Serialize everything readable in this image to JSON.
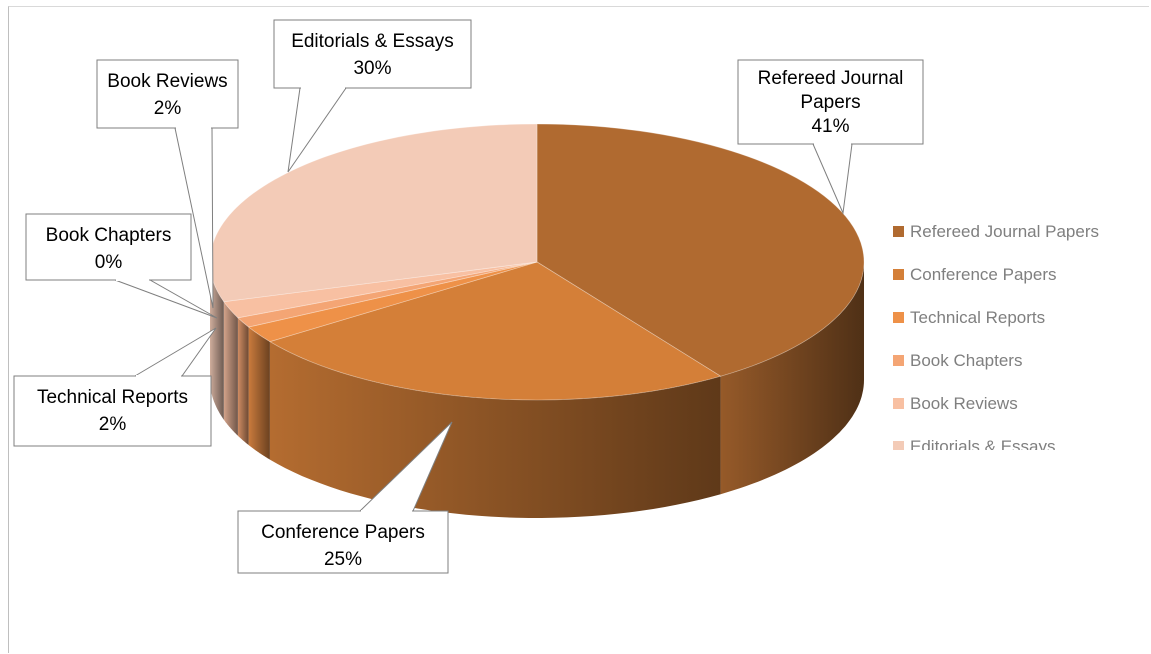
{
  "chart_data": {
    "type": "pie",
    "variant": "3d-pie",
    "legend_position": "right",
    "slices": [
      {
        "label": "Refereed Journal Papers",
        "value": 41,
        "display": "41%",
        "color": "#b06a30"
      },
      {
        "label": "Conference Papers",
        "value": 25,
        "display": "25%",
        "color": "#d47f38"
      },
      {
        "label": "Technical Reports",
        "value": 2,
        "display": "2%",
        "color": "#ee9148"
      },
      {
        "label": "Book Chapters",
        "value": 0,
        "display": "0%",
        "color": "#f4a574"
      },
      {
        "label": "Book Reviews",
        "value": 2,
        "display": "2%",
        "color": "#f8c0a2"
      },
      {
        "label": "Editorials & Essays",
        "value": 30,
        "display": "30%",
        "color": "#f3cbb7"
      }
    ]
  }
}
